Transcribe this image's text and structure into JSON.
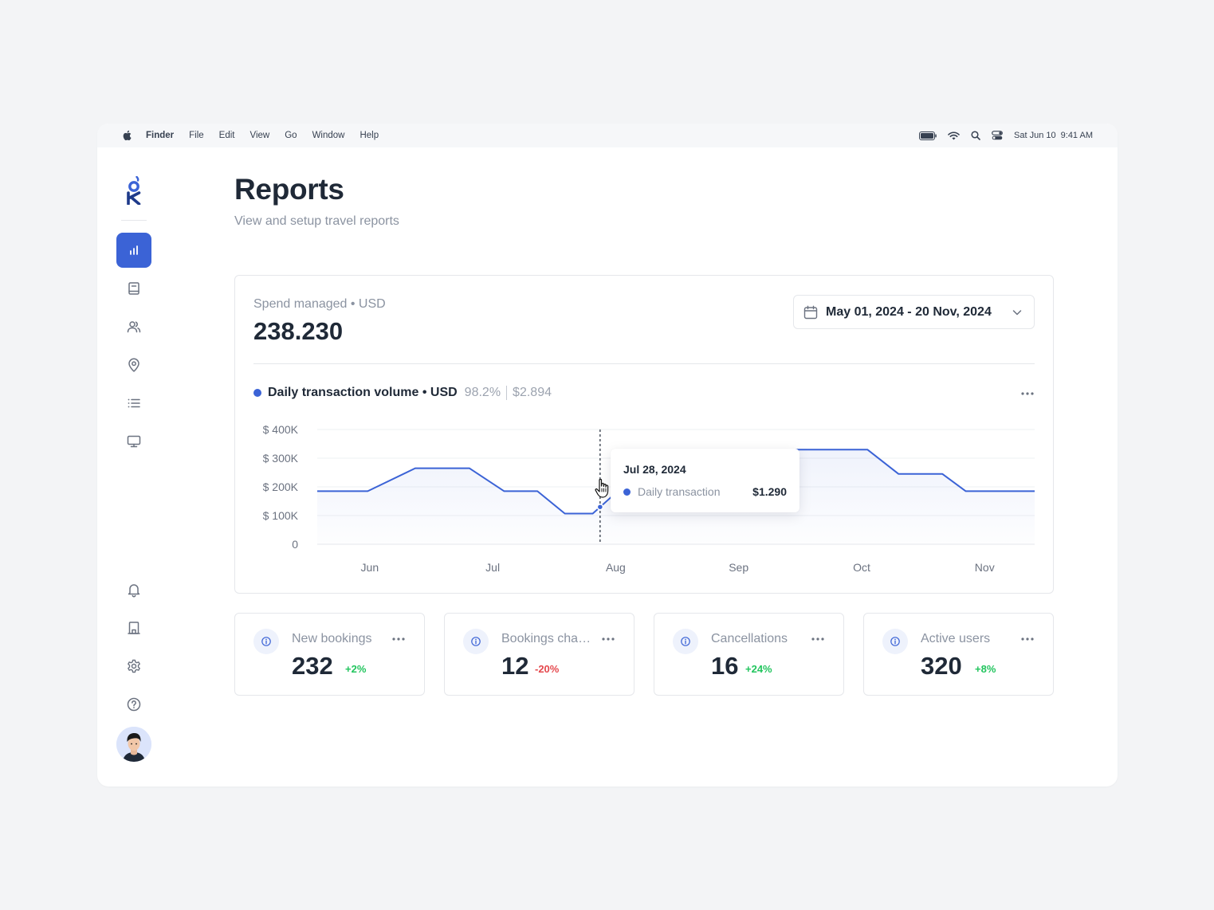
{
  "menubar": {
    "app": "Finder",
    "menus": [
      "File",
      "Edit",
      "View",
      "Go",
      "Window",
      "Help"
    ],
    "date": "Sat Jun 10",
    "time": "9:41 AM",
    "icons": [
      "battery-icon",
      "wifi-icon",
      "search-icon",
      "control-center-icon"
    ]
  },
  "sidebar": {
    "logo": "app-logo",
    "items": [
      {
        "name": "reports",
        "icon": "bar-chart-icon",
        "active": true
      },
      {
        "name": "bookings",
        "icon": "book-icon",
        "active": false
      },
      {
        "name": "travelers",
        "icon": "users-icon",
        "active": false
      },
      {
        "name": "locations",
        "icon": "map-pin-icon",
        "active": false
      },
      {
        "name": "lists",
        "icon": "list-icon",
        "active": false
      },
      {
        "name": "display",
        "icon": "monitor-icon",
        "active": false
      }
    ],
    "bottom_items": [
      {
        "name": "notifications",
        "icon": "bell-icon"
      },
      {
        "name": "company",
        "icon": "building-icon"
      },
      {
        "name": "settings",
        "icon": "gear-icon"
      },
      {
        "name": "help",
        "icon": "help-circle-icon"
      }
    ]
  },
  "page": {
    "title": "Reports",
    "subtitle": "View and setup travel reports"
  },
  "spend": {
    "label": "Spend managed • USD",
    "value": "238.230",
    "date_range": "May 01, 2024 - 20 Nov, 2024"
  },
  "legend": {
    "name": "Daily transaction volume • USD",
    "pct": "98.2%",
    "amount": "$2.894"
  },
  "tooltip": {
    "date": "Jul 28, 2024",
    "label": "Daily transaction",
    "value": "$1.290"
  },
  "chart_data": {
    "type": "area",
    "series": [
      {
        "name": "Daily transaction volume • USD",
        "color": "#3b63d6",
        "points": [
          [
            0,
            185000
          ],
          [
            1.23,
            185000
          ],
          [
            2.39,
            265000
          ],
          [
            3.71,
            265000
          ],
          [
            4.56,
            185000
          ],
          [
            5.37,
            185000
          ],
          [
            6.04,
            107000
          ],
          [
            6.72,
            107000
          ],
          [
            7.63,
            223000
          ],
          [
            8.28,
            223000
          ],
          [
            9.04,
            223000
          ],
          [
            9.63,
            308000
          ],
          [
            10.9,
            330000
          ],
          [
            11.5,
            330000
          ],
          [
            12.25,
            330000
          ],
          [
            13.0,
            330000
          ],
          [
            13.42,
            330000
          ],
          [
            14.18,
            245000
          ],
          [
            15.25,
            245000
          ],
          [
            15.82,
            185000
          ],
          [
            17.5,
            185000
          ]
        ]
      }
    ],
    "x_axis": {
      "ticks": [
        {
          "label": "Jun",
          "pos": 1.28
        },
        {
          "label": "Jul",
          "pos": 4.28
        },
        {
          "label": "Aug",
          "pos": 7.28
        },
        {
          "label": "Sep",
          "pos": 10.28
        },
        {
          "label": "Oct",
          "pos": 13.28
        },
        {
          "label": "Nov",
          "pos": 16.28
        }
      ],
      "range": [
        0,
        17.5
      ]
    },
    "y_axis": {
      "ticks": [
        {
          "label": "$ 400K",
          "value": 400000
        },
        {
          "label": "$ 300K",
          "value": 300000
        },
        {
          "label": "$ 200K",
          "value": 200000
        },
        {
          "label": "$ 100K",
          "value": 100000
        },
        {
          "label": "0",
          "value": 0
        }
      ],
      "range": [
        0,
        400000
      ]
    },
    "highlight_x": 6.9,
    "grid": true
  },
  "stats": [
    {
      "label": "New bookings",
      "value": "232",
      "change": "+2%",
      "trend": "pos"
    },
    {
      "label": "Bookings changes",
      "value": "12",
      "change": "-20%",
      "trend": "neg"
    },
    {
      "label": "Cancellations",
      "value": "16",
      "change": "+24%",
      "trend": "pos"
    },
    {
      "label": "Active users",
      "value": "320",
      "change": "+8%",
      "trend": "pos"
    }
  ]
}
